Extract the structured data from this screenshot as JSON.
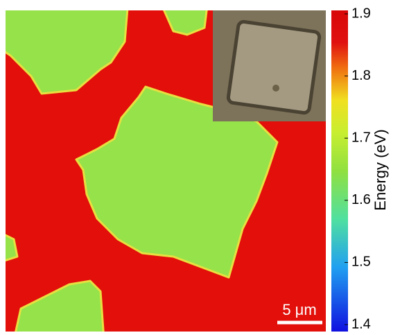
{
  "colorbar": {
    "label": "Energy (eV)",
    "lim": [
      1.4,
      1.9
    ],
    "ticks": [
      1.4,
      1.5,
      1.6,
      1.7,
      1.8,
      1.9
    ]
  },
  "scale_bar": {
    "label": "5 μm"
  }
}
